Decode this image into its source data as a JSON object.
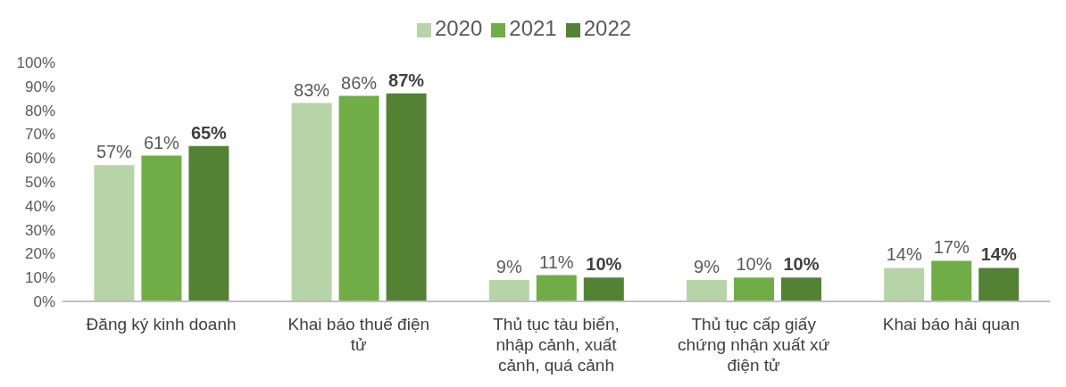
{
  "chart_data": {
    "type": "bar",
    "categories": [
      "Đăng ký kinh doanh",
      "Khai báo thuế điện tử",
      "Thủ tục tàu biển, nhập cảnh, xuất cảnh, quá cảnh",
      "Thủ tục cấp giấy chứng nhận xuất xứ điện tử",
      "Khai báo hải quan"
    ],
    "series": [
      {
        "name": "2020",
        "color": "#b7d4a8",
        "values": [
          57,
          83,
          9,
          9,
          14
        ],
        "value_labels": [
          "57%",
          "83%",
          "9%",
          "9%",
          "14%"
        ]
      },
      {
        "name": "2021",
        "color": "#70ad47",
        "values": [
          61,
          86,
          11,
          10,
          17
        ],
        "value_labels": [
          "61%",
          "86%",
          "11%",
          "10%",
          "17%"
        ]
      },
      {
        "name": "2022",
        "color": "#548235",
        "values": [
          65,
          87,
          10,
          10,
          14
        ],
        "value_labels": [
          "65%",
          "87%",
          "10%",
          "10%",
          "14%"
        ]
      }
    ],
    "ylim": [
      0,
      100
    ],
    "yticks": [
      {
        "value": 0,
        "label": "0%"
      },
      {
        "value": 10,
        "label": "10%"
      },
      {
        "value": 20,
        "label": "20%"
      },
      {
        "value": 30,
        "label": "30%"
      },
      {
        "value": 40,
        "label": "40%"
      },
      {
        "value": 50,
        "label": "50%"
      },
      {
        "value": 60,
        "label": "60%"
      },
      {
        "value": 70,
        "label": "70%"
      },
      {
        "value": 80,
        "label": "80%"
      },
      {
        "value": 90,
        "label": "90%"
      },
      {
        "value": 100,
        "label": "100%"
      }
    ],
    "grid": false,
    "legend": "top"
  }
}
